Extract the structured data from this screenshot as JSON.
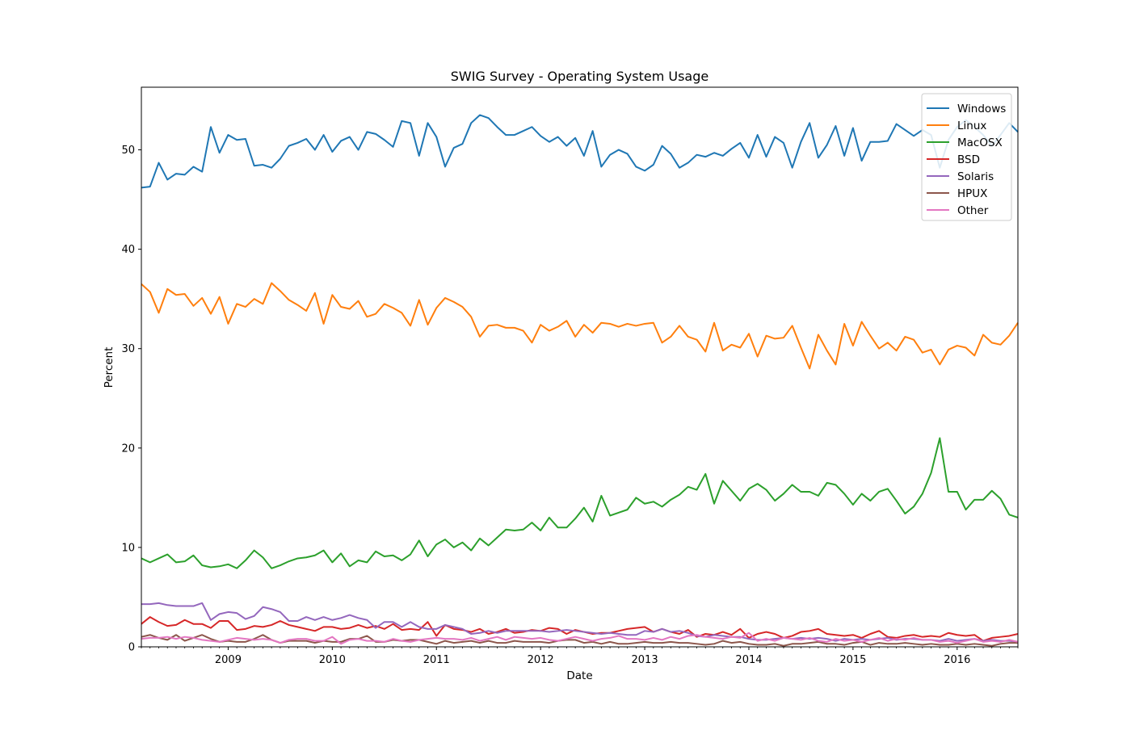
{
  "chart_data": {
    "type": "line",
    "title": "SWIG Survey - Operating System Usage",
    "xlabel": "Date",
    "ylabel": "Percent",
    "x_start": "2008-03",
    "x_end": "2016-08",
    "xlim": [
      "2008-03",
      "2016-08"
    ],
    "ylim": [
      0,
      56.3
    ],
    "y_ticks": [
      0,
      10,
      20,
      30,
      40,
      50
    ],
    "x_ticks": [
      "2009",
      "2010",
      "2011",
      "2012",
      "2013",
      "2014",
      "2015",
      "2016"
    ],
    "legend_position": "top-right",
    "grid": false,
    "series": [
      {
        "name": "Windows",
        "color": "#1f77b4",
        "values": [
          46.2,
          46.3,
          48.7,
          47.0,
          47.6,
          47.5,
          48.3,
          47.8,
          52.3,
          49.7,
          51.5,
          51.0,
          51.1,
          48.4,
          48.5,
          48.2,
          49.1,
          50.4,
          50.7,
          51.1,
          50.0,
          51.5,
          49.8,
          50.9,
          51.3,
          50.0,
          51.8,
          51.6,
          51.0,
          50.3,
          52.9,
          52.7,
          49.4,
          52.7,
          51.3,
          48.3,
          50.2,
          50.6,
          52.7,
          53.5,
          53.2,
          52.3,
          51.5,
          51.5,
          51.9,
          52.3,
          51.4,
          50.8,
          51.3,
          50.4,
          51.2,
          49.4,
          51.9,
          48.3,
          49.5,
          50.0,
          49.6,
          48.3,
          47.9,
          48.5,
          50.4,
          49.6,
          48.2,
          48.7,
          49.5,
          49.3,
          49.7,
          49.4,
          50.1,
          50.7,
          49.2,
          51.5,
          49.3,
          51.3,
          50.7,
          48.2,
          50.8,
          52.7,
          49.2,
          50.5,
          52.4,
          49.4,
          52.2,
          48.9,
          50.8,
          50.8,
          50.9,
          52.6,
          52.0,
          51.4,
          52.0,
          51.5,
          48.2,
          51.0,
          52.3,
          53.0,
          52.3,
          51.5,
          50.4,
          51.5,
          52.7,
          51.8
        ]
      },
      {
        "name": "Linux",
        "color": "#ff7f0e",
        "values": [
          36.5,
          35.7,
          33.6,
          36.0,
          35.4,
          35.5,
          34.3,
          35.1,
          33.5,
          35.2,
          32.5,
          34.5,
          34.2,
          35.0,
          34.5,
          36.6,
          35.8,
          34.9,
          34.4,
          33.8,
          35.6,
          32.5,
          35.4,
          34.2,
          34.0,
          34.8,
          33.2,
          33.5,
          34.5,
          34.1,
          33.6,
          32.3,
          34.9,
          32.4,
          34.1,
          35.1,
          34.7,
          34.2,
          33.2,
          31.2,
          32.3,
          32.4,
          32.1,
          32.1,
          31.8,
          30.6,
          32.4,
          31.8,
          32.2,
          32.8,
          31.2,
          32.4,
          31.6,
          32.6,
          32.5,
          32.2,
          32.5,
          32.3,
          32.5,
          32.6,
          30.6,
          31.2,
          32.3,
          31.2,
          30.9,
          29.7,
          32.6,
          29.8,
          30.4,
          30.1,
          31.5,
          29.2,
          31.3,
          31.0,
          31.1,
          32.3,
          30.1,
          28.0,
          31.4,
          29.8,
          28.4,
          32.5,
          30.3,
          32.7,
          31.3,
          30.0,
          30.6,
          29.8,
          31.2,
          30.9,
          29.6,
          29.9,
          28.4,
          29.9,
          30.3,
          30.1,
          29.3,
          31.4,
          30.6,
          30.4,
          31.3,
          32.6
        ]
      },
      {
        "name": "MacOSX",
        "color": "#2ca02c",
        "values": [
          8.9,
          8.5,
          8.9,
          9.3,
          8.5,
          8.6,
          9.2,
          8.2,
          8.0,
          8.1,
          8.3,
          7.9,
          8.7,
          9.7,
          9.0,
          7.9,
          8.2,
          8.6,
          8.9,
          9.0,
          9.2,
          9.7,
          8.5,
          9.4,
          8.1,
          8.7,
          8.5,
          9.6,
          9.1,
          9.2,
          8.7,
          9.3,
          10.7,
          9.1,
          10.3,
          10.8,
          10.0,
          10.5,
          9.7,
          10.9,
          10.2,
          11.0,
          11.8,
          11.7,
          11.8,
          12.5,
          11.7,
          13.0,
          12.0,
          12.0,
          12.9,
          14.0,
          12.6,
          15.2,
          13.2,
          13.5,
          13.8,
          15.0,
          14.4,
          14.6,
          14.1,
          14.8,
          15.3,
          16.1,
          15.8,
          17.4,
          14.4,
          16.7,
          15.7,
          14.7,
          15.9,
          16.4,
          15.8,
          14.7,
          15.4,
          16.3,
          15.6,
          15.6,
          15.2,
          16.5,
          16.3,
          15.4,
          14.3,
          15.4,
          14.7,
          15.6,
          15.9,
          14.7,
          13.4,
          14.1,
          15.4,
          17.5,
          21.0,
          15.6,
          15.6,
          13.8,
          14.8,
          14.8,
          15.7,
          14.9,
          13.3,
          13.0
        ]
      },
      {
        "name": "BSD",
        "color": "#d62728",
        "values": [
          2.3,
          3.0,
          2.5,
          2.1,
          2.2,
          2.7,
          2.3,
          2.3,
          1.9,
          2.6,
          2.6,
          1.7,
          1.8,
          2.1,
          2.0,
          2.2,
          2.6,
          2.2,
          2.0,
          1.8,
          1.6,
          2.0,
          2.0,
          1.8,
          1.9,
          2.2,
          1.9,
          2.1,
          1.8,
          2.3,
          1.7,
          1.8,
          1.7,
          2.5,
          1.1,
          2.2,
          1.8,
          1.7,
          1.5,
          1.8,
          1.3,
          1.5,
          1.8,
          1.4,
          1.5,
          1.7,
          1.6,
          1.9,
          1.8,
          1.3,
          1.7,
          1.5,
          1.3,
          1.4,
          1.4,
          1.6,
          1.8,
          1.9,
          2.0,
          1.5,
          1.8,
          1.5,
          1.3,
          1.7,
          1.0,
          1.3,
          1.2,
          1.5,
          1.2,
          1.8,
          0.9,
          1.3,
          1.5,
          1.3,
          0.9,
          1.1,
          1.5,
          1.6,
          1.8,
          1.3,
          1.2,
          1.1,
          1.2,
          0.9,
          1.3,
          1.6,
          1.0,
          0.9,
          1.1,
          1.2,
          1.0,
          1.1,
          1.0,
          1.4,
          1.2,
          1.1,
          1.2,
          0.6,
          0.9,
          1.0,
          1.1,
          1.3
        ]
      },
      {
        "name": "Solaris",
        "color": "#9467bd",
        "values": [
          4.3,
          4.3,
          4.4,
          4.2,
          4.1,
          4.1,
          4.1,
          4.4,
          2.7,
          3.3,
          3.5,
          3.4,
          2.8,
          3.1,
          4.0,
          3.8,
          3.5,
          2.6,
          2.6,
          3.0,
          2.7,
          3.0,
          2.7,
          2.9,
          3.2,
          2.9,
          2.7,
          1.9,
          2.5,
          2.5,
          2.0,
          2.5,
          2.0,
          1.8,
          1.8,
          2.2,
          2.0,
          1.8,
          1.3,
          1.4,
          1.6,
          1.4,
          1.6,
          1.6,
          1.6,
          1.6,
          1.6,
          1.5,
          1.6,
          1.7,
          1.6,
          1.5,
          1.4,
          1.3,
          1.4,
          1.3,
          1.2,
          1.2,
          1.6,
          1.5,
          1.8,
          1.5,
          1.6,
          1.4,
          1.1,
          1.0,
          1.2,
          1.1,
          1.0,
          1.0,
          0.8,
          0.7,
          0.7,
          0.8,
          0.9,
          0.8,
          0.9,
          0.8,
          0.9,
          0.8,
          0.6,
          0.8,
          0.7,
          0.8,
          0.7,
          0.8,
          0.9,
          0.7,
          0.8,
          0.8,
          0.7,
          0.7,
          0.6,
          0.8,
          0.6,
          0.7,
          0.8,
          0.6,
          0.7,
          0.6,
          0.6,
          0.5
        ]
      },
      {
        "name": "HPUX",
        "color": "#8c564b",
        "values": [
          1.0,
          1.2,
          0.9,
          0.7,
          1.2,
          0.6,
          0.9,
          1.2,
          0.8,
          0.5,
          0.6,
          0.5,
          0.5,
          0.8,
          1.2,
          0.7,
          0.4,
          0.6,
          0.6,
          0.6,
          0.4,
          0.6,
          0.5,
          0.5,
          0.8,
          0.8,
          1.1,
          0.5,
          0.5,
          0.7,
          0.6,
          0.7,
          0.7,
          0.5,
          0.3,
          0.6,
          0.4,
          0.5,
          0.6,
          0.4,
          0.6,
          0.4,
          0.4,
          0.6,
          0.5,
          0.5,
          0.5,
          0.4,
          0.6,
          0.7,
          0.7,
          0.4,
          0.5,
          0.3,
          0.5,
          0.3,
          0.3,
          0.4,
          0.5,
          0.4,
          0.4,
          0.5,
          0.4,
          0.4,
          0.3,
          0.2,
          0.3,
          0.6,
          0.4,
          0.5,
          0.3,
          0.2,
          0.2,
          0.3,
          0.1,
          0.3,
          0.3,
          0.4,
          0.5,
          0.3,
          0.3,
          0.2,
          0.4,
          0.5,
          0.2,
          0.4,
          0.3,
          0.3,
          0.4,
          0.3,
          0.2,
          0.3,
          0.2,
          0.2,
          0.3,
          0.2,
          0.3,
          0.2,
          0.1,
          0.3,
          0.4,
          0.4
        ]
      },
      {
        "name": "Other",
        "color": "#e377c2",
        "values": [
          0.8,
          0.9,
          0.9,
          1.0,
          0.8,
          1.0,
          0.9,
          0.7,
          0.6,
          0.5,
          0.7,
          0.9,
          0.8,
          0.7,
          0.8,
          0.7,
          0.4,
          0.7,
          0.8,
          0.8,
          0.6,
          0.6,
          1.0,
          0.3,
          0.7,
          0.8,
          0.6,
          0.6,
          0.5,
          0.8,
          0.6,
          0.5,
          0.7,
          0.8,
          0.9,
          0.8,
          0.8,
          0.7,
          0.9,
          0.6,
          0.8,
          1.0,
          0.7,
          1.0,
          0.9,
          0.8,
          0.9,
          0.7,
          0.6,
          0.8,
          1.0,
          0.8,
          0.6,
          0.8,
          0.9,
          1.1,
          0.8,
          0.8,
          0.7,
          0.9,
          0.7,
          1.0,
          0.8,
          1.1,
          1.2,
          1.0,
          0.9,
          0.8,
          1.0,
          0.9,
          1.4,
          0.6,
          0.8,
          0.6,
          0.9,
          0.8,
          0.7,
          0.9,
          0.6,
          0.5,
          0.8,
          0.6,
          0.7,
          0.5,
          0.7,
          0.9,
          0.6,
          0.8,
          0.7,
          0.9,
          0.7,
          0.7,
          0.5,
          0.6,
          0.4,
          0.6,
          0.8,
          0.5,
          0.6,
          0.5,
          0.7,
          0.5
        ]
      }
    ]
  }
}
